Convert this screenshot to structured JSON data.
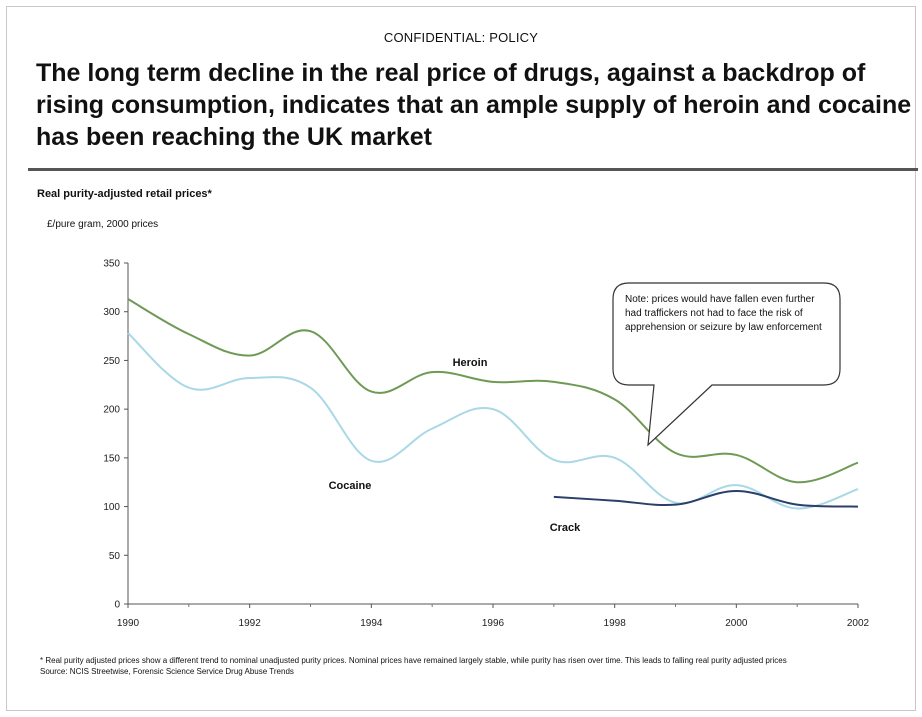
{
  "header": {
    "confidential": "CONFIDENTIAL: POLICY",
    "headline": "The long term decline in the real price of drugs, against a backdrop of rising consumption, indicates that an ample supply of heroin and cocaine has been reaching the UK market"
  },
  "chart_data": {
    "type": "line",
    "title": "Real purity-adjusted retail prices*",
    "ylabel": "£/pure gram, 2000 prices",
    "xlabel": "",
    "xlim": [
      1990,
      2002
    ],
    "ylim": [
      0,
      350
    ],
    "x_ticks": [
      "1990",
      "1992",
      "1994",
      "1996",
      "1998",
      "2000",
      "2002"
    ],
    "y_ticks": [
      "0",
      "50",
      "100",
      "150",
      "200",
      "250",
      "300",
      "350"
    ],
    "series": [
      {
        "name": "Heroin",
        "color": "#6f9a55",
        "points": [
          [
            1990,
            313
          ],
          [
            1991,
            277
          ],
          [
            1992,
            255
          ],
          [
            1993,
            280
          ],
          [
            1994,
            218
          ],
          [
            1995,
            238
          ],
          [
            1996,
            228
          ],
          [
            1997,
            228
          ],
          [
            1998,
            210
          ],
          [
            1999,
            155
          ],
          [
            2000,
            153
          ],
          [
            2001,
            125
          ],
          [
            2002,
            145
          ]
        ]
      },
      {
        "name": "Cocaine",
        "color": "#a9d8e6",
        "points": [
          [
            1990,
            278
          ],
          [
            1991,
            222
          ],
          [
            1992,
            232
          ],
          [
            1993,
            222
          ],
          [
            1994,
            147
          ],
          [
            1995,
            180
          ],
          [
            1996,
            200
          ],
          [
            1997,
            148
          ],
          [
            1998,
            150
          ],
          [
            1999,
            104
          ],
          [
            2000,
            122
          ],
          [
            2001,
            98
          ],
          [
            2002,
            118
          ]
        ]
      },
      {
        "name": "Crack",
        "color": "#2a3f6a",
        "points": [
          [
            1997,
            110
          ],
          [
            1998,
            106
          ],
          [
            1999,
            102
          ],
          [
            2000,
            116
          ],
          [
            2001,
            102
          ],
          [
            2002,
            100
          ]
        ]
      }
    ],
    "series_labels": [
      {
        "series": "Heroin",
        "text": "Heroin"
      },
      {
        "series": "Cocaine",
        "text": "Cocaine"
      },
      {
        "series": "Crack",
        "text": "Crack"
      }
    ],
    "annotation": "Note: prices would have fallen even further had traffickers not had to face the risk of apprehension or seizure by law enforcement",
    "grid": false,
    "legend": "none"
  },
  "footnote": {
    "line1": "* Real purity adjusted prices show  a different trend to nominal unadjusted purity prices. Nominal prices have remained largely stable, while purity has risen over time. This leads to falling real purity adjusted prices",
    "line2": "Source: NCIS Streetwise, Forensic Science Service Drug Abuse Trends"
  }
}
